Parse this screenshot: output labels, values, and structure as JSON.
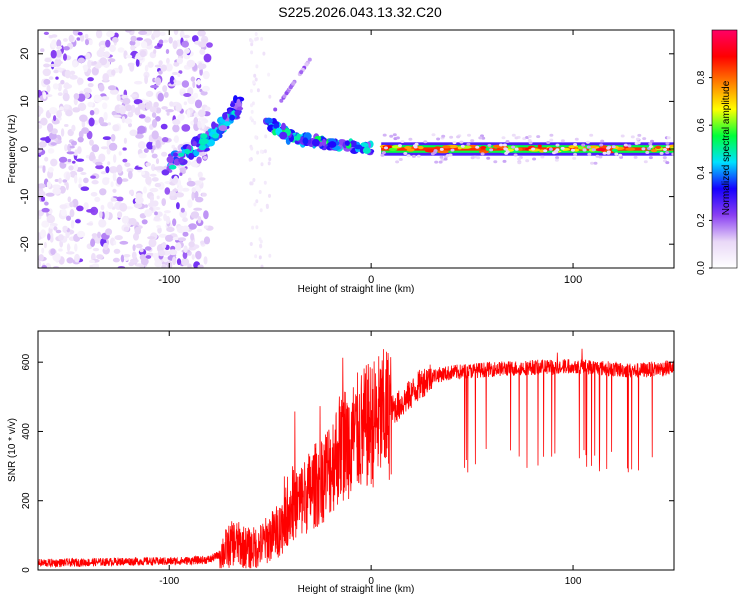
{
  "figure": {
    "title": "S225.2026.043.13.32.C20"
  },
  "chart_data": [
    {
      "type": "heatmap",
      "title": "S225.2026.043.13.32.C20",
      "xlabel": "Height of straight line (km)",
      "ylabel": "Frequency (Hz)",
      "xlim": [
        -165,
        150
      ],
      "ylim": [
        -25,
        25
      ],
      "x_ticks": [
        -100,
        0,
        100
      ],
      "y_ticks": [
        -20,
        -10,
        0,
        10,
        20
      ],
      "colorbar": {
        "label": "Normalized spectral amplitude",
        "range": [
          0,
          1
        ],
        "ticks": [
          0.0,
          0.2,
          0.4,
          0.6,
          0.8
        ],
        "colormap": [
          "#ffffff",
          "#e9d8f7",
          "#8a3ff2",
          "#1500ff",
          "#00e1ff",
          "#00ff3a",
          "#ffff00",
          "#ff8000",
          "#ff0000",
          "#ff0066"
        ]
      },
      "features": [
        {
          "name": "",
          "x_range": [
            -165,
            -80
          ],
          "y_range": [
            -25,
            25
          ],
          "amplitude": 0.1
        },
        {
          "name": "",
          "x": [
            -100,
            -88,
            -78,
            -70,
            -64
          ],
          "y": [
            -3,
            0,
            3,
            7,
            10
          ],
          "amplitude": 0.35
        },
        {
          "name": "",
          "x": [
            -52,
            -45,
            -38,
            -30,
            -20,
            -10,
            0
          ],
          "y": [
            6,
            4,
            2,
            2,
            1,
            0.5,
            0
          ],
          "amplitude": 0.4
        },
        {
          "name": "",
          "x_range": [
            5,
            150
          ],
          "y": 0,
          "amplitude": 0.85
        }
      ],
      "grid": false
    },
    {
      "type": "line",
      "xlabel": "Height of straight line (km)",
      "ylabel": "SNR (10 * v/v)",
      "xlim": [
        -165,
        150
      ],
      "ylim": [
        0,
        690
      ],
      "x_ticks": [
        -100,
        0,
        100
      ],
      "y_ticks": [
        0,
        200,
        400,
        600
      ],
      "series": [
        {
          "color": "#ff0000",
          "x": [
            -165,
            -140,
            -120,
            -100,
            -90,
            -80,
            -75,
            -68,
            -60,
            -55,
            -50,
            -45,
            -40,
            -35,
            -30,
            -25,
            -20,
            -15,
            -10,
            -5,
            0,
            5,
            10,
            15,
            20,
            25,
            30,
            40,
            50,
            60,
            70,
            80,
            90,
            100,
            110,
            120,
            130,
            140,
            150
          ],
          "y": [
            20,
            22,
            25,
            25,
            27,
            30,
            45,
            80,
            60,
            70,
            95,
            120,
            180,
            200,
            230,
            260,
            300,
            360,
            380,
            400,
            420,
            440,
            460,
            480,
            510,
            540,
            560,
            570,
            575,
            580,
            582,
            585,
            585,
            590,
            585,
            580,
            575,
            580,
            585
          ]
        }
      ],
      "grid": false
    }
  ]
}
